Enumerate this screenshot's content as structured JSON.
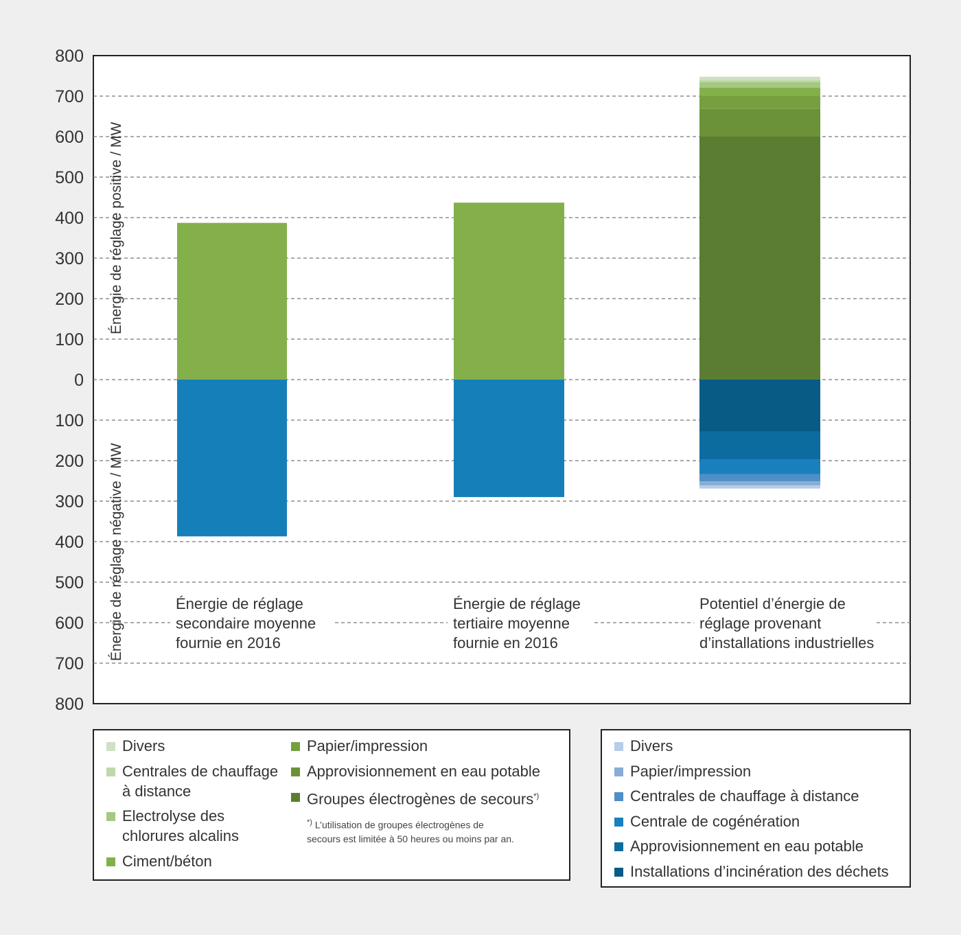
{
  "chart_data": {
    "type": "bar",
    "stacked": true,
    "ylabel_positive": "Énergie de réglage positive / MW",
    "ylabel_negative": "Énergie de réglage négative / MW",
    "y_ticks": [
      "800",
      "700",
      "600",
      "500",
      "400",
      "300",
      "200",
      "100",
      "0",
      "100",
      "200",
      "300",
      "400",
      "500",
      "600",
      "700",
      "800"
    ],
    "ylim": [
      -800,
      800
    ],
    "grid": true,
    "categories": [
      "Énergie de réglage\nsecondaire moyenne\nfournie en 2016",
      "Énergie de réglage\ntertiaire moyenne\nfournie en 2016",
      "Potentiel d’énergie de\nréglage provenant\nd’installations industrielles"
    ],
    "bars": [
      {
        "positive": [
          {
            "value": 387,
            "color": "#84b04b"
          }
        ],
        "negative": [
          {
            "value": 387,
            "color": "#157fba"
          }
        ]
      },
      {
        "positive": [
          {
            "value": 437,
            "color": "#84b04b"
          }
        ],
        "negative": [
          {
            "value": 290,
            "color": "#157fba"
          }
        ]
      },
      {
        "positive": [
          {
            "value": 600,
            "color": "#5b7d32",
            "series": "Groupes électrogènes de secours*)"
          },
          {
            "value": 68,
            "color": "#6b9239",
            "series": "Approvisionnement en eau potable"
          },
          {
            "value": 33,
            "color": "#76a03f",
            "series": "Papier/impression"
          },
          {
            "value": 20,
            "color": "#84b04b",
            "series": "Ciment/béton"
          },
          {
            "value": 14,
            "color": "#a5c882",
            "series": "Electrolyse des chlorures alcalins"
          },
          {
            "value": 5,
            "color": "#bfd8a9",
            "series": "Centrales de chauffage à distance"
          },
          {
            "value": 8,
            "color": "#cfe0c4",
            "series": "Divers"
          }
        ],
        "negative": [
          {
            "value": 128,
            "color": "#075b85",
            "series": "Installations d’incinération des déchets"
          },
          {
            "value": 70,
            "color": "#0d6c9f",
            "series": "Approvisionnement en eau potable"
          },
          {
            "value": 35,
            "color": "#1a80bd",
            "series": "Centrale de cogénération"
          },
          {
            "value": 18,
            "color": "#4d8fc7",
            "series": "Centrales de chauffage à distance"
          },
          {
            "value": 10,
            "color": "#89acd6",
            "series": "Papier/impression"
          },
          {
            "value": 8,
            "color": "#b7cde9",
            "series": "Divers"
          }
        ]
      }
    ]
  },
  "legend_positive": [
    {
      "label": "Divers",
      "color": "#cfe0c4"
    },
    {
      "label": "Centrales de chauffage\nà distance",
      "color": "#bfd8a9"
    },
    {
      "label": "Electrolyse des\nchlorures alcalins",
      "color": "#a5c882"
    },
    {
      "label": "Ciment/béton",
      "color": "#84b04b"
    },
    {
      "label": "Papier/impression",
      "color": "#76a03f"
    },
    {
      "label": "Approvisionnement en eau potable",
      "color": "#6b9239"
    },
    {
      "label": "Groupes électrogènes de secours",
      "sup": "*)",
      "color": "#5b7d32"
    }
  ],
  "footnote": {
    "sup": "*)",
    "text": " L’utilisation de groupes électrogènes de\nsecours est limitée à 50 heures ou moins par an."
  },
  "legend_negative": [
    {
      "label": "Divers",
      "color": "#b7cde9"
    },
    {
      "label": "Papier/impression",
      "color": "#89acd6"
    },
    {
      "label": "Centrales de chauffage à distance",
      "color": "#4d8fc7"
    },
    {
      "label": "Centrale de cogénération",
      "color": "#1a80bd"
    },
    {
      "label": "Approvisionnement en eau potable",
      "color": "#0d6c9f"
    },
    {
      "label": "Installations d’incinération des déchets",
      "color": "#075b85"
    }
  ]
}
